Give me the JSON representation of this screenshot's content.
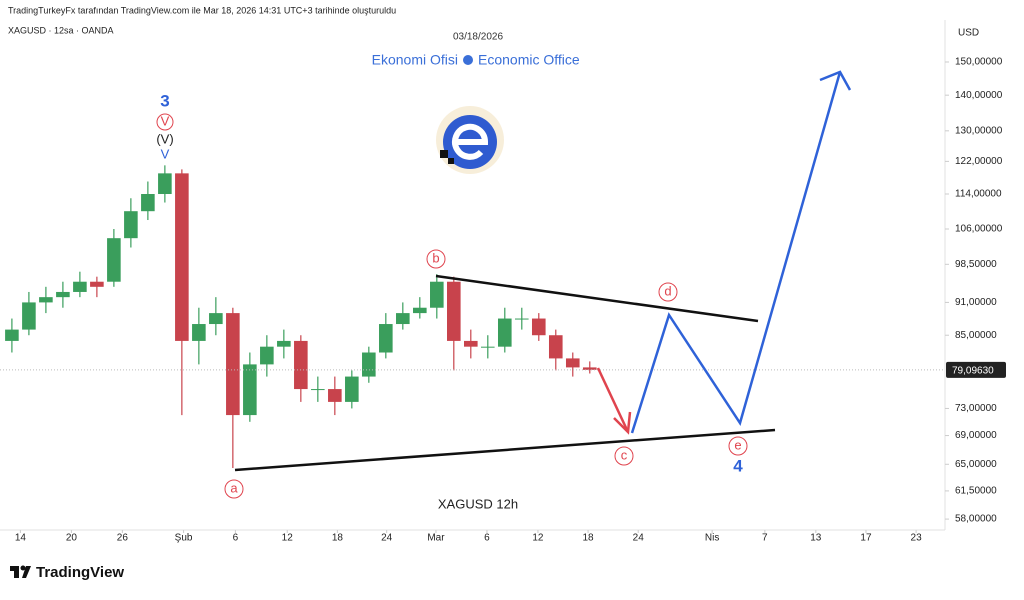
{
  "header": {
    "credit": "TradingTurkeyFx tarafından TradingView.com ile Mar 18, 2026 14:31 UTC+3 tarihinde oluşturuldu",
    "symbol": "XAGUSD · 12sa · OANDA",
    "date": "03/18/2026",
    "brand_left": "Ekonomi Ofisi",
    "brand_right": "Economic Office"
  },
  "chart_data": {
    "type": "candlestick",
    "title": "XAGUSD   12h",
    "y_axis_label": "USD",
    "x": [
      13,
      15,
      17,
      19,
      21,
      23,
      25,
      27,
      29,
      31,
      33,
      35,
      37,
      39,
      41,
      43,
      45,
      47,
      49,
      51,
      53,
      55,
      57,
      59,
      61,
      63,
      65,
      67,
      69,
      71,
      73,
      75,
      77,
      79,
      81
    ],
    "open": [
      84,
      86,
      91,
      92,
      93,
      95,
      95,
      104,
      110,
      114,
      119,
      84,
      87,
      89,
      72,
      80,
      83,
      84,
      76,
      76,
      74,
      78,
      82,
      87,
      89,
      90,
      95,
      84,
      83,
      83,
      88,
      88,
      85,
      81,
      79.5
    ],
    "high": [
      88,
      93,
      94,
      95,
      97,
      96,
      106,
      113,
      117,
      121,
      120,
      90,
      92,
      90,
      82,
      85,
      86,
      85,
      78,
      78,
      79,
      83,
      89,
      91,
      92,
      96.5,
      96,
      86,
      85,
      90,
      90,
      89,
      86,
      82,
      80.5
    ],
    "low": [
      82,
      85,
      89,
      90,
      92,
      92,
      94,
      102,
      108,
      112,
      72,
      80,
      85,
      64.5,
      71,
      78,
      81,
      74,
      74,
      72,
      73,
      77,
      81,
      86,
      88,
      88,
      79,
      81,
      81,
      82,
      86,
      84,
      79,
      78,
      78.5
    ],
    "close": [
      86,
      91,
      92,
      93,
      95,
      94,
      104,
      110,
      114,
      119,
      84,
      87,
      89,
      72,
      80,
      83,
      84,
      76,
      76,
      74,
      78,
      82,
      87,
      89,
      90,
      95,
      84,
      83,
      83,
      88,
      88,
      85,
      81,
      79.5,
      79.1
    ],
    "up_color": "#3a9e5c",
    "down_color": "#c8434c",
    "log_scale": true,
    "grid": false,
    "ylim": [
      56.7,
      163
    ],
    "xlim": [
      11.6,
      122.8
    ],
    "yticks": [
      {
        "value": 150,
        "label": "150,00000"
      },
      {
        "value": 140,
        "label": "140,00000"
      },
      {
        "value": 130,
        "label": "130,00000"
      },
      {
        "value": 122,
        "label": "122,00000"
      },
      {
        "value": 114,
        "label": "114,00000"
      },
      {
        "value": 106,
        "label": "106,00000"
      },
      {
        "value": 98.5,
        "label": "98,50000"
      },
      {
        "value": 91,
        "label": "91,00000"
      },
      {
        "value": 85,
        "label": "85,00000"
      },
      {
        "value": 73,
        "label": "73,00000"
      },
      {
        "value": 69,
        "label": "69,00000"
      },
      {
        "value": 65,
        "label": "65,00000"
      },
      {
        "value": 61.5,
        "label": "61,50000"
      },
      {
        "value": 58,
        "label": "58,00000"
      }
    ],
    "xticks": [
      {
        "value": 14,
        "label": "14"
      },
      {
        "value": 20,
        "label": "20"
      },
      {
        "value": 26,
        "label": "26"
      },
      {
        "value": 33.2,
        "label": "Şub"
      },
      {
        "value": 39.3,
        "label": "6"
      },
      {
        "value": 45.4,
        "label": "12"
      },
      {
        "value": 51.3,
        "label": "18"
      },
      {
        "value": 57.1,
        "label": "24"
      },
      {
        "value": 62.9,
        "label": "Mar"
      },
      {
        "value": 68.9,
        "label": "6"
      },
      {
        "value": 74.9,
        "label": "12"
      },
      {
        "value": 80.8,
        "label": "18"
      },
      {
        "value": 86.7,
        "label": "24"
      },
      {
        "value": 95.4,
        "label": "Nis"
      },
      {
        "value": 101.6,
        "label": "7"
      },
      {
        "value": 107.6,
        "label": "13"
      },
      {
        "value": 113.5,
        "label": "17"
      },
      {
        "value": 119.4,
        "label": "23"
      }
    ],
    "last_price": {
      "value": 79.0963,
      "label": "79,09630"
    },
    "wave_labels": {
      "wave3": "3",
      "circled_v": "V",
      "paren_v": "(V)",
      "small_v": "V",
      "a": "a",
      "b": "b",
      "c": "c",
      "d": "d",
      "e": "e",
      "wave4": "4"
    }
  },
  "footer": {
    "logo": "TradingView"
  }
}
